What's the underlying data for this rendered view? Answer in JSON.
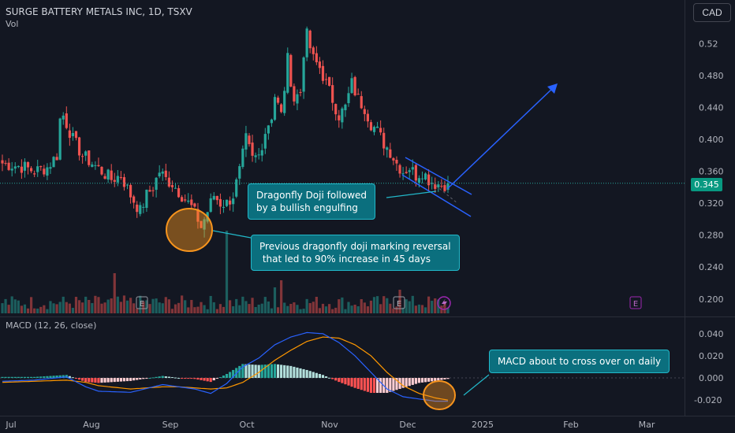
{
  "header": {
    "title": "SURGE BATTERY METALS INC, 1D, TSXV",
    "volume_label": "Vol",
    "currency_button": "CAD",
    "macd_label": "MACD (12, 26, close)"
  },
  "last_price": "0.345",
  "annotations": {
    "callout_1": "Dragonfly Doji followed\nby a bullish engulfing",
    "callout_2": "Previous dragonfly doji marking reversal\n that led to 90% increase in 45 days",
    "callout_3": "MACD about to cross over on daily"
  },
  "earnings_markers": [
    "E",
    "E",
    "E"
  ],
  "colors": {
    "up": "#26a69a",
    "down": "#ef5350",
    "macd_line": "#2962ff",
    "signal_line": "#ff9800",
    "annotation_line": "#2962ff",
    "callout_fill": "#0b6f7e",
    "highlight_circle": "#f7941d"
  },
  "chart_data": [
    {
      "type": "candlestick",
      "title": "SURGE BATTERY METALS INC, 1D, TSXV",
      "x_ticks": [
        "Jul",
        "Aug",
        "Sep",
        "Oct",
        "Nov",
        "Dec",
        "2025",
        "Feb",
        "Mar"
      ],
      "y_ticks": [
        "0.200",
        "0.240",
        "0.280",
        "0.320",
        "0.360",
        "0.400",
        "0.440",
        "0.480",
        "0.52"
      ],
      "ylim": [
        0.185,
        0.545
      ],
      "last_value": 0.345,
      "close_path": [
        [
          0,
          0.37
        ],
        [
          7,
          0.365
        ],
        [
          10,
          0.36
        ],
        [
          14,
          0.365
        ],
        [
          17,
          0.38
        ],
        [
          18,
          0.425
        ],
        [
          19,
          0.43
        ],
        [
          22,
          0.4
        ],
        [
          25,
          0.38
        ],
        [
          28,
          0.37
        ],
        [
          31,
          0.36
        ],
        [
          34,
          0.35
        ],
        [
          37,
          0.355
        ],
        [
          40,
          0.33
        ],
        [
          43,
          0.31
        ],
        [
          45,
          0.33
        ],
        [
          47,
          0.34
        ],
        [
          49,
          0.36
        ],
        [
          51,
          0.35
        ],
        [
          53,
          0.345
        ],
        [
          55,
          0.335
        ],
        [
          57,
          0.325
        ],
        [
          59,
          0.315
        ],
        [
          61,
          0.3
        ],
        [
          62,
          0.29
        ],
        [
          64,
          0.31
        ],
        [
          66,
          0.33
        ],
        [
          68,
          0.32
        ],
        [
          70,
          0.32
        ],
        [
          72,
          0.33
        ],
        [
          74,
          0.36
        ],
        [
          76,
          0.4
        ],
        [
          78,
          0.375
        ],
        [
          80,
          0.38
        ],
        [
          82,
          0.41
        ],
        [
          84,
          0.43
        ],
        [
          85,
          0.455
        ],
        [
          87,
          0.43
        ],
        [
          89,
          0.5
        ],
        [
          91,
          0.45
        ],
        [
          93,
          0.46
        ],
        [
          94,
          0.51
        ],
        [
          95,
          0.53
        ],
        [
          97,
          0.5
        ],
        [
          99,
          0.49
        ],
        [
          101,
          0.47
        ],
        [
          103,
          0.45
        ],
        [
          105,
          0.43
        ],
        [
          107,
          0.44
        ],
        [
          109,
          0.47
        ],
        [
          111,
          0.45
        ],
        [
          113,
          0.44
        ],
        [
          115,
          0.42
        ],
        [
          117,
          0.41
        ],
        [
          119,
          0.395
        ],
        [
          121,
          0.385
        ],
        [
          123,
          0.37
        ],
        [
          125,
          0.36
        ],
        [
          127,
          0.365
        ],
        [
          129,
          0.355
        ],
        [
          131,
          0.36
        ],
        [
          133,
          0.35
        ],
        [
          135,
          0.345
        ],
        [
          137,
          0.343
        ],
        [
          139,
          0.345
        ]
      ],
      "volume_peaks": [
        {
          "x": 35,
          "relative_volume": 0.85
        },
        {
          "x": 70,
          "relative_volume": 1.0
        },
        {
          "x": 85,
          "relative_volume": 0.55
        },
        {
          "x": 87,
          "relative_volume": 0.7
        },
        {
          "x": 124,
          "relative_volume": 0.5
        }
      ]
    },
    {
      "type": "line",
      "title": "MACD (12, 26, close)",
      "y_ticks": [
        "-0.020",
        "0.000",
        "0.020",
        "0.040"
      ],
      "ylim": [
        -0.027,
        0.047
      ],
      "x": [
        0,
        10,
        20,
        26,
        30,
        40,
        50,
        55,
        60,
        65,
        70,
        75,
        80,
        85,
        90,
        95,
        100,
        105,
        110,
        115,
        120,
        125,
        130,
        135,
        139
      ],
      "series": [
        {
          "name": "",
          "values": [
            -0.003,
            -0.002,
            0.001,
            -0.008,
            -0.012,
            -0.013,
            -0.006,
            -0.008,
            -0.01,
            -0.014,
            -0.005,
            0.01,
            0.018,
            0.03,
            0.037,
            0.041,
            0.04,
            0.032,
            0.02,
            0.005,
            -0.01,
            -0.017,
            -0.019,
            -0.021,
            -0.021
          ]
        },
        {
          "name": "",
          "values": [
            -0.004,
            -0.003,
            -0.002,
            -0.004,
            -0.007,
            -0.01,
            -0.008,
            -0.008,
            -0.009,
            -0.01,
            -0.009,
            -0.004,
            0.005,
            0.016,
            0.025,
            0.033,
            0.037,
            0.036,
            0.03,
            0.02,
            0.005,
            -0.007,
            -0.014,
            -0.018,
            -0.02
          ]
        }
      ]
    }
  ]
}
